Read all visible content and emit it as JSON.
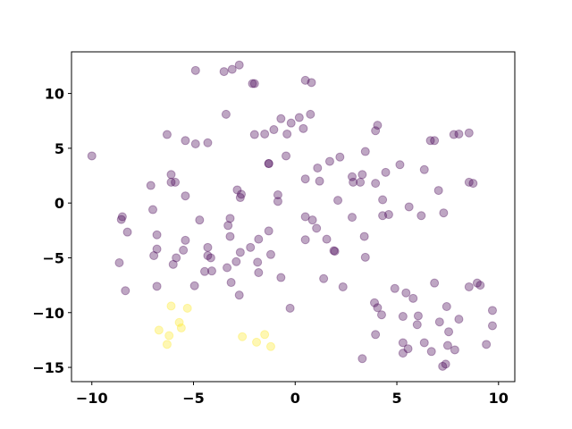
{
  "chart_data": {
    "type": "scatter",
    "title": "",
    "xlabel": "",
    "ylabel": "",
    "xlim": [
      -11,
      10.8
    ],
    "ylim": [
      -16.3,
      13.8
    ],
    "xticks": [
      -10,
      -5,
      0,
      5,
      10
    ],
    "yticks": [
      -15,
      -10,
      -5,
      0,
      5,
      10
    ],
    "grid": false,
    "colors": {
      "0": "#440154",
      "1": "#fde725"
    },
    "alpha": 0.35,
    "points": [
      [
        -10.0,
        4.3,
        0
      ],
      [
        -4.9,
        12.1,
        0
      ],
      [
        -3.5,
        12.0,
        0
      ],
      [
        -3.1,
        12.2,
        0
      ],
      [
        -2.75,
        12.6,
        0
      ],
      [
        -2.1,
        10.9,
        0
      ],
      [
        -2.0,
        10.9,
        0
      ],
      [
        0.5,
        11.2,
        0
      ],
      [
        0.8,
        11.0,
        0
      ],
      [
        -3.4,
        8.1,
        0
      ],
      [
        0.75,
        8.1,
        0
      ],
      [
        0.2,
        7.8,
        0
      ],
      [
        -0.2,
        7.3,
        0
      ],
      [
        -0.7,
        7.7,
        0
      ],
      [
        -1.05,
        6.7,
        0
      ],
      [
        -1.5,
        6.3,
        0
      ],
      [
        -2.0,
        6.25,
        0
      ],
      [
        -0.4,
        6.3,
        0
      ],
      [
        0.4,
        6.8,
        0
      ],
      [
        -6.3,
        6.25,
        0
      ],
      [
        -5.4,
        5.7,
        0
      ],
      [
        -4.9,
        5.4,
        0
      ],
      [
        -4.3,
        5.5,
        0
      ],
      [
        -1.3,
        3.6,
        0
      ],
      [
        -1.3,
        3.6,
        0
      ],
      [
        -0.45,
        4.3,
        0
      ],
      [
        -6.1,
        2.6,
        0
      ],
      [
        -6.1,
        1.9,
        0
      ],
      [
        -5.9,
        1.9,
        0
      ],
      [
        -5.4,
        0.65,
        0
      ],
      [
        -7.1,
        1.6,
        0
      ],
      [
        -7.0,
        -0.6,
        0
      ],
      [
        -2.85,
        1.2,
        0
      ],
      [
        -2.65,
        0.8,
        0
      ],
      [
        -2.7,
        0.5,
        0
      ],
      [
        -0.85,
        0.75,
        0
      ],
      [
        -0.85,
        0.15,
        0
      ],
      [
        0.5,
        2.2,
        0
      ],
      [
        1.1,
        3.2,
        0
      ],
      [
        1.2,
        2.0,
        0
      ],
      [
        1.7,
        3.8,
        0
      ],
      [
        2.2,
        4.2,
        0
      ],
      [
        2.8,
        2.4,
        0
      ],
      [
        2.85,
        1.9,
        0
      ],
      [
        3.2,
        1.9,
        0
      ],
      [
        3.3,
        2.6,
        0
      ],
      [
        3.45,
        4.7,
        0
      ],
      [
        3.95,
        6.6,
        0
      ],
      [
        4.05,
        7.1,
        0
      ],
      [
        3.95,
        1.8,
        0
      ],
      [
        4.45,
        2.8,
        0
      ],
      [
        5.15,
        3.5,
        0
      ],
      [
        4.3,
        0.3,
        0
      ],
      [
        2.1,
        0.25,
        0
      ],
      [
        2.8,
        -1.3,
        0
      ],
      [
        4.3,
        -1.15,
        0
      ],
      [
        4.6,
        -1.05,
        0
      ],
      [
        5.6,
        -0.35,
        0
      ],
      [
        6.2,
        -1.15,
        0
      ],
      [
        6.35,
        3.05,
        0
      ],
      [
        6.65,
        5.7,
        0
      ],
      [
        6.85,
        5.7,
        0
      ],
      [
        7.8,
        6.25,
        0
      ],
      [
        8.05,
        6.3,
        0
      ],
      [
        8.55,
        6.4,
        0
      ],
      [
        7.05,
        1.15,
        0
      ],
      [
        8.55,
        1.9,
        0
      ],
      [
        8.75,
        1.8,
        0
      ],
      [
        7.3,
        -0.9,
        0
      ],
      [
        -8.5,
        -1.25,
        0
      ],
      [
        -8.55,
        -1.5,
        0
      ],
      [
        -8.25,
        -2.65,
        0
      ],
      [
        -6.8,
        -2.9,
        0
      ],
      [
        -6.95,
        -4.8,
        0
      ],
      [
        -6.8,
        -4.2,
        0
      ],
      [
        -8.65,
        -5.45,
        0
      ],
      [
        -8.35,
        -8.0,
        0
      ],
      [
        -6.8,
        -7.6,
        0
      ],
      [
        -5.85,
        -5.0,
        0
      ],
      [
        -6.0,
        -5.6,
        0
      ],
      [
        -5.4,
        -3.4,
        0
      ],
      [
        -5.5,
        -4.3,
        0
      ],
      [
        -4.7,
        -1.55,
        0
      ],
      [
        -3.2,
        -1.4,
        0
      ],
      [
        -3.3,
        -2.05,
        0
      ],
      [
        -3.2,
        -3.05,
        0
      ],
      [
        -4.3,
        -4.05,
        0
      ],
      [
        -4.3,
        -4.8,
        0
      ],
      [
        -4.15,
        -5.0,
        0
      ],
      [
        -4.1,
        -6.2,
        0
      ],
      [
        -4.45,
        -6.25,
        0
      ],
      [
        -4.95,
        -7.55,
        0
      ],
      [
        -3.35,
        -5.9,
        0
      ],
      [
        -2.9,
        -5.35,
        0
      ],
      [
        -2.7,
        -4.5,
        0
      ],
      [
        -2.2,
        -4.05,
        0
      ],
      [
        -1.8,
        -3.3,
        0
      ],
      [
        -1.3,
        -2.55,
        0
      ],
      [
        -1.85,
        -5.4,
        0
      ],
      [
        -1.8,
        -6.35,
        0
      ],
      [
        -1.2,
        -4.7,
        0
      ],
      [
        -3.15,
        -7.25,
        0
      ],
      [
        -2.75,
        -8.4,
        0
      ],
      [
        -0.7,
        -6.8,
        0
      ],
      [
        -0.25,
        -9.6,
        0
      ],
      [
        0.5,
        -1.25,
        0
      ],
      [
        0.85,
        -1.55,
        0
      ],
      [
        0.5,
        -3.35,
        0
      ],
      [
        1.05,
        -2.3,
        0
      ],
      [
        1.55,
        -3.3,
        0
      ],
      [
        1.9,
        -4.35,
        0
      ],
      [
        1.95,
        -4.4,
        0
      ],
      [
        1.4,
        -6.9,
        0
      ],
      [
        2.35,
        -7.65,
        0
      ],
      [
        3.4,
        -3.05,
        0
      ],
      [
        3.45,
        -4.95,
        0
      ],
      [
        3.3,
        -14.2,
        0
      ],
      [
        3.9,
        -9.1,
        0
      ],
      [
        4.05,
        -9.55,
        0
      ],
      [
        4.25,
        -10.2,
        0
      ],
      [
        3.95,
        -12.0,
        0
      ],
      [
        4.9,
        -7.8,
        0
      ],
      [
        5.45,
        -8.2,
        0
      ],
      [
        5.8,
        -8.7,
        0
      ],
      [
        5.3,
        -10.35,
        0
      ],
      [
        6.05,
        -10.3,
        0
      ],
      [
        6.0,
        -11.1,
        0
      ],
      [
        5.3,
        -12.75,
        0
      ],
      [
        5.3,
        -13.7,
        0
      ],
      [
        5.55,
        -13.3,
        0
      ],
      [
        6.35,
        -12.75,
        0
      ],
      [
        6.85,
        -7.3,
        0
      ],
      [
        7.1,
        -10.85,
        0
      ],
      [
        6.7,
        -13.55,
        0
      ],
      [
        7.25,
        -14.9,
        0
      ],
      [
        7.4,
        -14.7,
        0
      ],
      [
        7.45,
        -9.45,
        0
      ],
      [
        7.55,
        -11.75,
        0
      ],
      [
        7.5,
        -13.0,
        0
      ],
      [
        7.85,
        -13.4,
        0
      ],
      [
        8.05,
        -10.6,
        0
      ],
      [
        8.55,
        -7.65,
        0
      ],
      [
        8.95,
        -7.3,
        0
      ],
      [
        9.1,
        -7.5,
        0
      ],
      [
        9.4,
        -12.9,
        0
      ],
      [
        9.7,
        -9.8,
        0
      ],
      [
        9.7,
        -11.2,
        0
      ],
      [
        -6.1,
        -9.4,
        1
      ],
      [
        -5.3,
        -9.6,
        1
      ],
      [
        -6.7,
        -11.6,
        1
      ],
      [
        -6.2,
        -12.1,
        1
      ],
      [
        -6.3,
        -12.9,
        1
      ],
      [
        -5.7,
        -10.9,
        1
      ],
      [
        -5.6,
        -11.4,
        1
      ],
      [
        -2.6,
        -12.2,
        1
      ],
      [
        -1.9,
        -12.7,
        1
      ],
      [
        -1.5,
        -12.0,
        1
      ],
      [
        -1.2,
        -13.1,
        1
      ]
    ]
  }
}
